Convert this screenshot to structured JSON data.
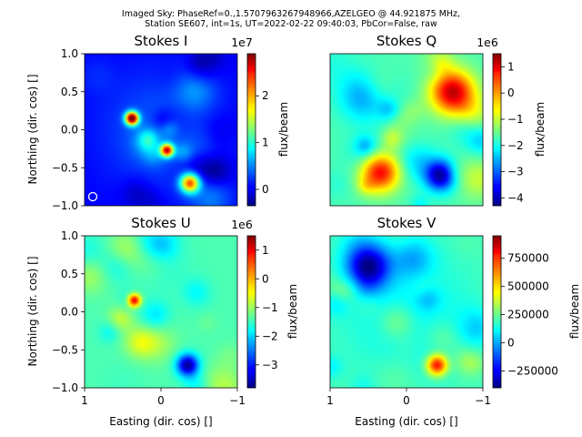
{
  "suptitle": {
    "line1": "Imaged Sky: PhaseRef=0.,1.5707963267948966,AZELGEO @ 44.921875 MHz,",
    "line2": "Station SE607, int=1s, UT=2022-02-22 09:40:03, PbCor=False, raw"
  },
  "chart_data": [
    {
      "type": "heatmap",
      "title": "Stokes I",
      "xlabel": "",
      "ylabel": "Northing (dir. cos) []",
      "xlim": [
        1,
        -1
      ],
      "ylim": [
        -1,
        1
      ],
      "yticks": [
        "1.0",
        "0.5",
        "0.0",
        "−0.5",
        "−1.0"
      ],
      "xticks": [],
      "colorbar": {
        "label": "flux/beam",
        "offset": "1e7",
        "ticks": [
          "2",
          "1",
          "0"
        ],
        "range": [
          -0.35,
          2.9
        ]
      },
      "features": [
        {
          "x": 0.38,
          "y": 0.15,
          "v": 3.0,
          "s": 0.06
        },
        {
          "x": -0.08,
          "y": -0.27,
          "v": 2.4,
          "s": 0.06
        },
        {
          "x": -0.38,
          "y": -0.7,
          "v": 2.2,
          "s": 0.09
        },
        {
          "x": 0.0,
          "y": 0.0,
          "v": 0.35,
          "s": 0.55
        }
      ]
    },
    {
      "type": "heatmap",
      "title": "Stokes Q",
      "xlabel": "",
      "ylabel": "",
      "xlim": [
        1,
        -1
      ],
      "ylim": [
        -1,
        1
      ],
      "yticks": [],
      "xticks": [],
      "colorbar": {
        "label": "flux/beam",
        "offset": "1e6",
        "ticks": [
          "1",
          "0",
          "−1",
          "−2",
          "−3",
          "−4"
        ],
        "range": [
          -4.3,
          1.5
        ]
      },
      "features": [
        {
          "x": 0.55,
          "y": 0.45,
          "v": -2.8,
          "s": 0.22
        },
        {
          "x": -0.45,
          "y": -0.6,
          "v": -4.2,
          "s": 0.14
        },
        {
          "x": 0.35,
          "y": -0.55,
          "v": 1.0,
          "s": 0.18
        },
        {
          "x": -0.6,
          "y": 0.5,
          "v": 1.1,
          "s": 0.2
        }
      ]
    },
    {
      "type": "heatmap",
      "title": "Stokes U",
      "xlabel": "Easting (dir. cos) []",
      "ylabel": "Northing (dir. cos) []",
      "xlim": [
        1,
        -1
      ],
      "ylim": [
        -1,
        1
      ],
      "yticks": [
        "1.0",
        "0.5",
        "0.0",
        "−0.5",
        "−1.0"
      ],
      "xticks": [
        "1",
        "0",
        "−1"
      ],
      "colorbar": {
        "label": "flux/beam",
        "offset": "1e6",
        "ticks": [
          "1",
          "0",
          "−1",
          "−2",
          "−3"
        ],
        "range": [
          -3.8,
          1.5
        ]
      },
      "features": [
        {
          "x": 0.0,
          "y": 0.6,
          "v": -1.6,
          "s": 0.25
        },
        {
          "x": -0.35,
          "y": -0.7,
          "v": -3.7,
          "s": 0.1
        },
        {
          "x": 0.35,
          "y": 0.15,
          "v": 1.2,
          "s": 0.06
        },
        {
          "x": 0.1,
          "y": -0.55,
          "v": -1.4,
          "s": 0.2
        }
      ]
    },
    {
      "type": "heatmap",
      "title": "Stokes V",
      "xlabel": "Easting (dir. cos) []",
      "ylabel": "",
      "xlim": [
        1,
        -1
      ],
      "ylim": [
        -1,
        1
      ],
      "yticks": [],
      "xticks": [
        "1",
        "0",
        "−1"
      ],
      "colorbar": {
        "label": "flux/beam",
        "offset": "",
        "ticks": [
          "750000",
          "500000",
          "250000",
          "0",
          "−250000"
        ],
        "range": [
          -400000,
          950000
        ]
      },
      "features": [
        {
          "x": 0.5,
          "y": 0.6,
          "v": -350000,
          "s": 0.2
        },
        {
          "x": -0.4,
          "y": -0.7,
          "v": 950000,
          "s": 0.1
        },
        {
          "x": 0.0,
          "y": 0.0,
          "v": 100000,
          "s": 0.6
        }
      ]
    }
  ]
}
